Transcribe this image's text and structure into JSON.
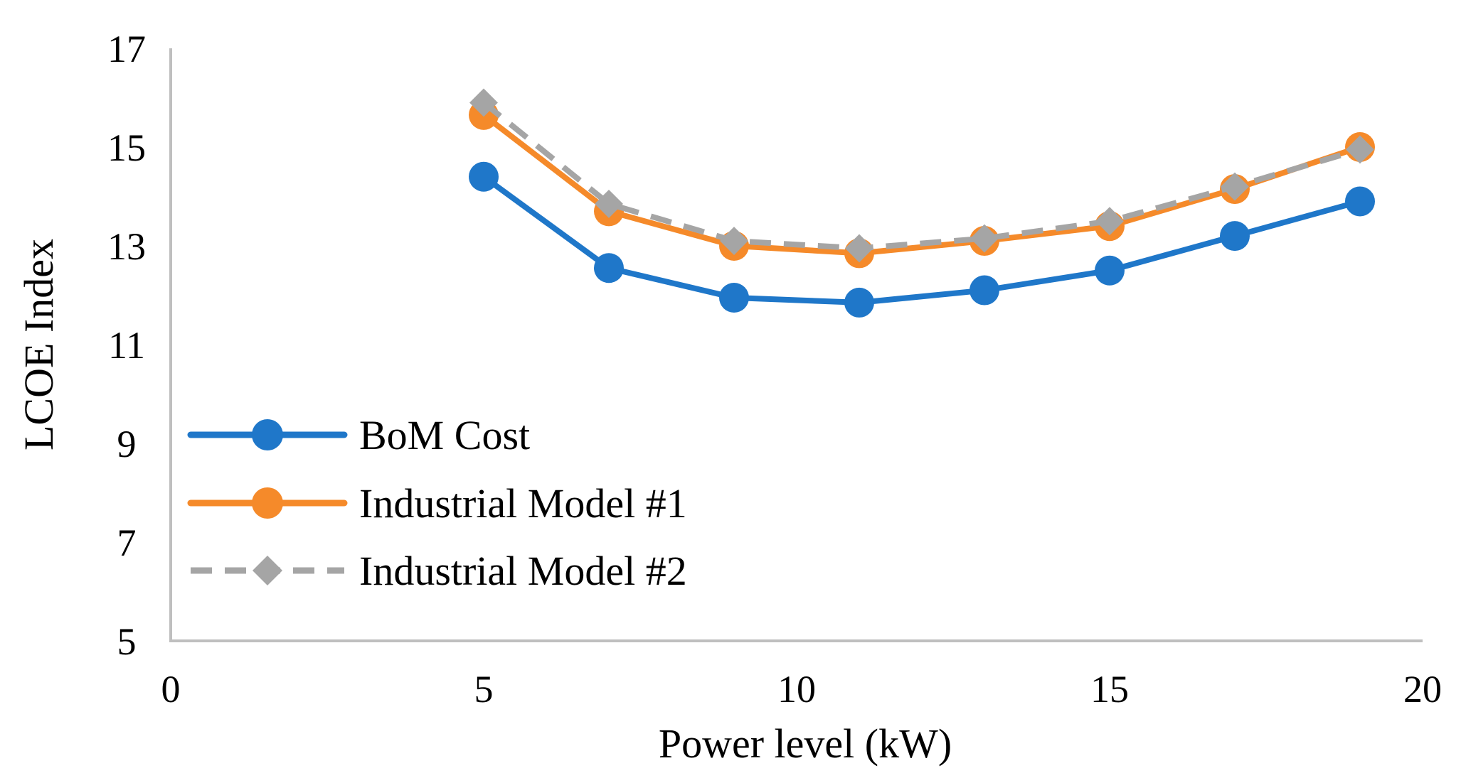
{
  "chart_data": {
    "type": "line",
    "title": "",
    "xlabel": "Power level (kW)",
    "ylabel": "LCOE Index",
    "xlim": [
      0,
      20
    ],
    "ylim": [
      5,
      17
    ],
    "xticks": [
      0,
      5,
      10,
      15,
      20
    ],
    "yticks": [
      5,
      7,
      9,
      11,
      13,
      15,
      17
    ],
    "grid": false,
    "legend_position": "left",
    "x": [
      5,
      7,
      9,
      11,
      13,
      15,
      17,
      19
    ],
    "series": [
      {
        "name": "BoM Cost",
        "values": [
          14.4,
          12.55,
          11.95,
          11.85,
          12.1,
          12.5,
          13.2,
          13.9
        ],
        "color": "#1F77C9",
        "marker": "circle",
        "dash": "solid"
      },
      {
        "name": "Industrial Model #1",
        "values": [
          15.65,
          13.7,
          13.0,
          12.85,
          13.1,
          13.4,
          14.15,
          15.0
        ],
        "color": "#F58A2A",
        "marker": "circle",
        "dash": "solid"
      },
      {
        "name": "Industrial Model #2",
        "values": [
          15.9,
          13.85,
          13.1,
          12.95,
          13.15,
          13.5,
          14.2,
          14.95
        ],
        "color": "#A5A5A5",
        "marker": "diamond",
        "dash": "dashed"
      }
    ]
  }
}
